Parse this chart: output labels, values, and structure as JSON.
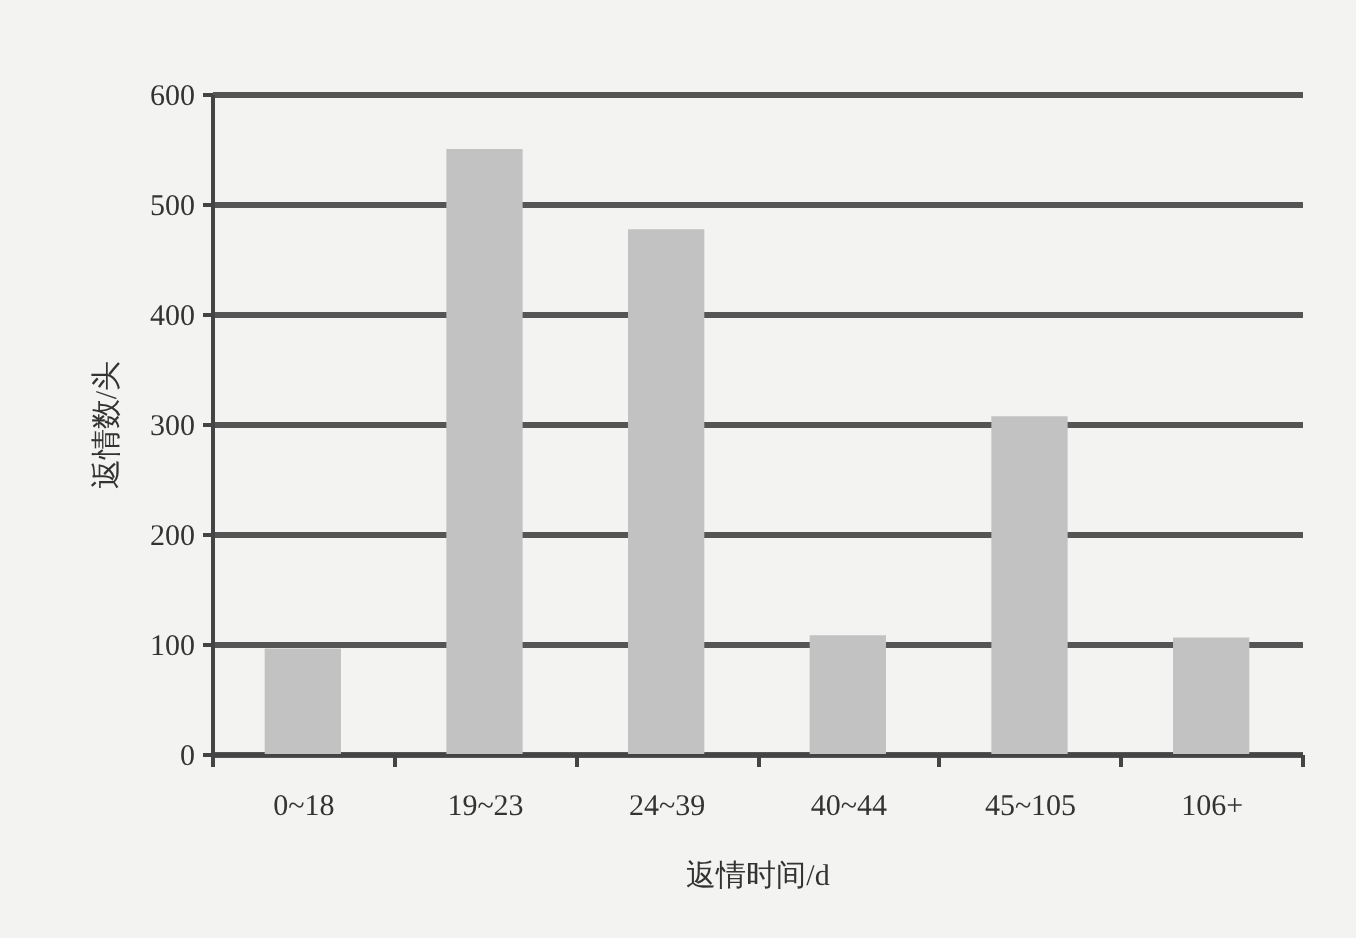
{
  "chart_data": {
    "type": "bar",
    "xlabel": "返情时间/d",
    "ylabel": "返情数/头",
    "categories": [
      "0~18",
      "19~23",
      "24~39",
      "40~44",
      "45~105",
      "106+"
    ],
    "values": [
      96,
      550,
      477,
      108,
      307,
      106
    ],
    "color": "#c2c2c2",
    "ylim": [
      0,
      600
    ],
    "yticks": [
      0,
      100,
      200,
      300,
      400,
      500,
      600
    ],
    "grid": "y"
  }
}
